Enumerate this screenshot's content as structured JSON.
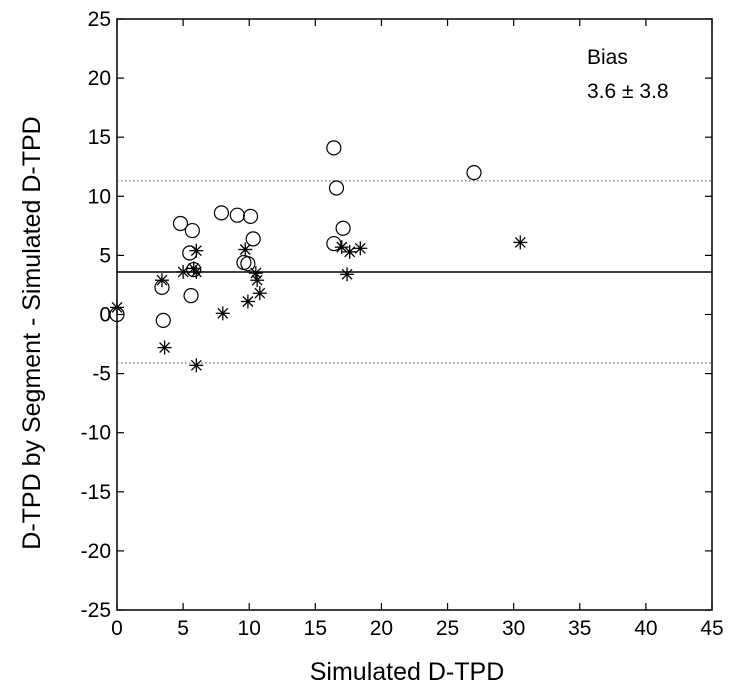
{
  "chart_data": {
    "type": "scatter",
    "xlabel": "Simulated D-TPD",
    "ylabel": "D-TPD by Segment - Simulated D-TPD",
    "xlim": [
      0,
      45
    ],
    "ylim": [
      -25,
      25
    ],
    "xticks": [
      0,
      5,
      10,
      15,
      20,
      25,
      30,
      35,
      40,
      45
    ],
    "yticks": [
      -25,
      -20,
      -15,
      -10,
      -5,
      0,
      5,
      10,
      15,
      20,
      25
    ],
    "grid": false,
    "annotation": {
      "title": "Bias",
      "value": "3.6 ± 3.8"
    },
    "reference_lines": [
      {
        "y": 3.6,
        "style": "solid"
      },
      {
        "y": 11.3,
        "style": "dotted"
      },
      {
        "y": -4.1,
        "style": "dotted"
      }
    ],
    "series": [
      {
        "marker": "circle",
        "points": [
          [
            0.0,
            0.0
          ],
          [
            3.4,
            2.3
          ],
          [
            3.5,
            -0.5
          ],
          [
            4.8,
            7.7
          ],
          [
            5.5,
            5.2
          ],
          [
            5.6,
            1.6
          ],
          [
            5.7,
            7.1
          ],
          [
            5.8,
            3.8
          ],
          [
            7.9,
            8.6
          ],
          [
            9.1,
            8.4
          ],
          [
            9.6,
            4.4
          ],
          [
            9.9,
            4.3
          ],
          [
            10.1,
            8.3
          ],
          [
            10.3,
            6.4
          ],
          [
            16.4,
            14.1
          ],
          [
            16.4,
            6.0
          ],
          [
            16.6,
            10.7
          ],
          [
            17.1,
            7.3
          ],
          [
            27.0,
            12.0
          ]
        ]
      },
      {
        "marker": "asterisk",
        "points": [
          [
            0.0,
            0.6
          ],
          [
            3.4,
            2.9
          ],
          [
            3.6,
            -2.8
          ],
          [
            5.0,
            3.6
          ],
          [
            5.8,
            3.9
          ],
          [
            6.0,
            5.4
          ],
          [
            6.0,
            3.6
          ],
          [
            6.0,
            -4.3
          ],
          [
            8.0,
            0.1
          ],
          [
            9.7,
            5.5
          ],
          [
            9.9,
            1.1
          ],
          [
            10.5,
            3.5
          ],
          [
            10.6,
            2.9
          ],
          [
            10.8,
            1.8
          ],
          [
            17.0,
            5.7
          ],
          [
            17.4,
            3.4
          ],
          [
            17.6,
            5.3
          ],
          [
            18.4,
            5.6
          ],
          [
            30.5,
            6.1
          ]
        ]
      }
    ]
  }
}
